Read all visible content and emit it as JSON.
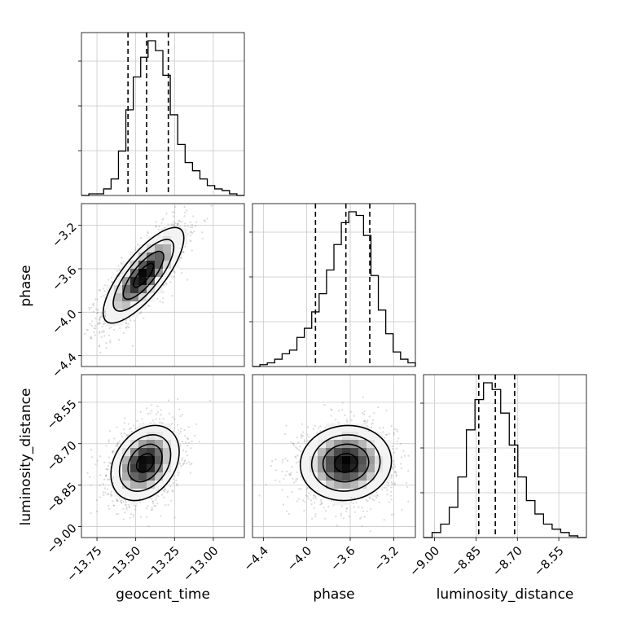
{
  "chart_data": {
    "type": "corner",
    "grid": true,
    "parameters": [
      {
        "name": "geocent_time",
        "label": "geocent_time",
        "range": [
          -13.85,
          -12.8
        ],
        "ticks": [
          "−13.75",
          "−13.50",
          "−13.25",
          "−13.00"
        ],
        "tick_values": [
          -13.75,
          -13.5,
          -13.25,
          -13.0
        ],
        "quantiles": [
          -13.55,
          -13.43,
          -13.29
        ],
        "histogram": [
          0,
          1,
          1,
          4,
          10,
          27,
          52,
          72,
          84,
          94,
          88,
          73,
          49,
          31,
          20,
          15,
          10,
          6,
          4,
          3,
          1,
          0
        ]
      },
      {
        "name": "phase",
        "label": "phase",
        "range": [
          -4.5,
          -3.0
        ],
        "ticks": [
          "−4.4",
          "−4.0",
          "−3.6",
          "−3.2"
        ],
        "tick_values": [
          -4.4,
          -4.0,
          -3.6,
          -3.2
        ],
        "quantiles": [
          -3.92,
          -3.64,
          -3.42
        ],
        "histogram": [
          0,
          1,
          2,
          4,
          7,
          9,
          16,
          21,
          30,
          40,
          53,
          67,
          79,
          85,
          83,
          72,
          50,
          31,
          18,
          8,
          4,
          2
        ]
      },
      {
        "name": "luminosity_distance",
        "label": "luminosity_distance",
        "range": [
          -9.04,
          -8.45
        ],
        "ticks": [
          "−9.00",
          "−8.85",
          "−8.70",
          "−8.55"
        ],
        "tick_values": [
          -9.0,
          -8.85,
          -8.7,
          -8.55
        ],
        "quantiles": [
          -8.84,
          -8.78,
          -8.71
        ],
        "histogram": [
          0,
          3,
          8,
          18,
          36,
          64,
          82,
          92,
          88,
          74,
          55,
          36,
          22,
          14,
          8,
          5,
          3,
          1,
          0
        ]
      }
    ],
    "pairs": [
      {
        "x": "geocent_time",
        "y": "phase",
        "center": [
          -13.45,
          -3.66
        ],
        "sd": [
          0.13,
          0.22
        ],
        "correlation": 0.78,
        "contours": [
          "0.5-sigma",
          "1-sigma",
          "1.5-sigma",
          "2-sigma"
        ]
      },
      {
        "x": "geocent_time",
        "y": "luminosity_distance",
        "center": [
          -13.44,
          -8.77
        ],
        "sd": [
          0.11,
          0.068
        ],
        "correlation": 0.3,
        "contours": [
          "0.5-sigma",
          "1-sigma",
          "1.5-sigma",
          "2-sigma"
        ]
      },
      {
        "x": "phase",
        "y": "luminosity_distance",
        "center": [
          -3.64,
          -8.77
        ],
        "sd": [
          0.21,
          0.068
        ],
        "correlation": 0.05,
        "contours": [
          "0.5-sigma",
          "1-sigma",
          "1.5-sigma",
          "2-sigma"
        ]
      }
    ]
  }
}
